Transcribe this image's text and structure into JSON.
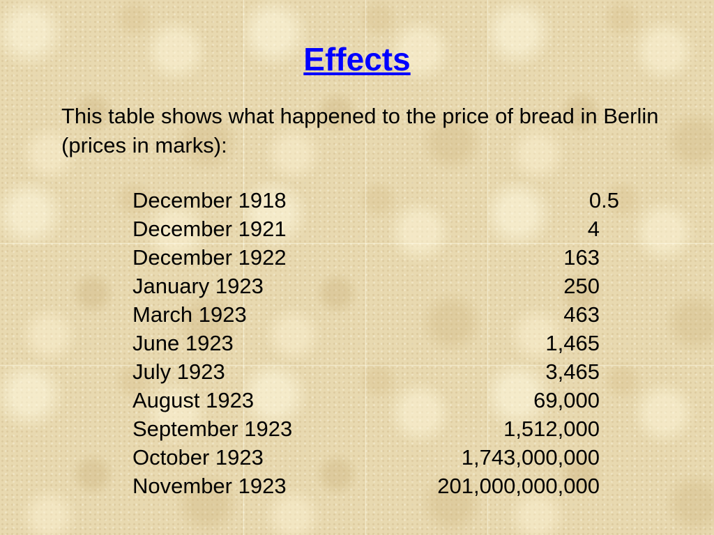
{
  "slide": {
    "title": "Effects",
    "intro": "This table shows what happened to the price of bread in Berlin (prices in marks):",
    "rows": [
      {
        "date": "December 1918",
        "price": "0.5"
      },
      {
        "date": "December 1921",
        "price": "4"
      },
      {
        "date": "December 1922",
        "price": "163"
      },
      {
        "date": "January 1923",
        "price": "250"
      },
      {
        "date": "March 1923",
        "price": "463"
      },
      {
        "date": "June 1923",
        "price": "1,465"
      },
      {
        "date": "July 1923",
        "price": "3,465"
      },
      {
        "date": "August 1923",
        "price": "69,000"
      },
      {
        "date": "September 1923",
        "price": "1,512,000"
      },
      {
        "date": "October 1923",
        "price": "1,743,000,000"
      },
      {
        "date": "November 1923",
        "price": "201,000,000,000"
      }
    ]
  }
}
